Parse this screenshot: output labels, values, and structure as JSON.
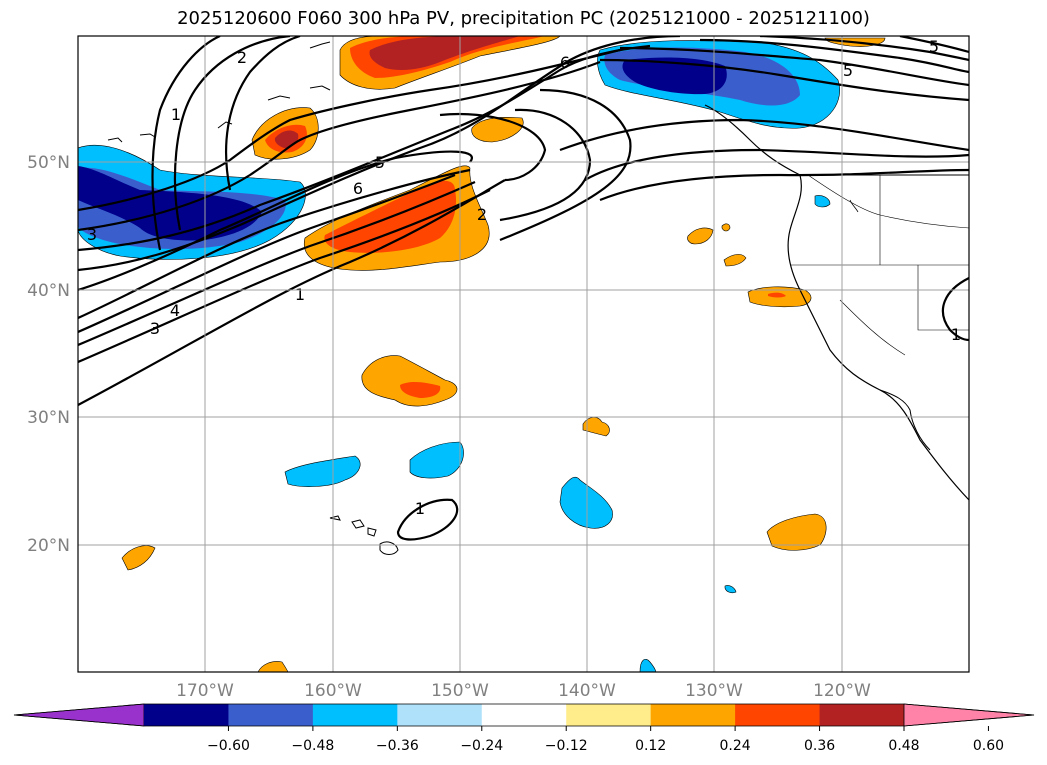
{
  "title": "2025120600 F060 300 hPa PV, precipitation PC (2025121000 - 2025121100)",
  "lat_labels": [
    "50°N",
    "40°N",
    "30°N",
    "20°N"
  ],
  "lon_labels": [
    "170°W",
    "160°W",
    "150°W",
    "140°W",
    "130°W",
    "120°W"
  ],
  "contour_labels": [
    "1",
    "2",
    "2",
    "3",
    "3",
    "4",
    "5",
    "5",
    "6",
    "6",
    "1",
    "1",
    "1",
    "5"
  ],
  "colorbar": {
    "ticks": [
      "−0.60",
      "−0.48",
      "−0.36",
      "−0.24",
      "−0.12",
      "0.12",
      "0.24",
      "0.36",
      "0.48",
      "0.60"
    ],
    "colors": [
      "#9932cc",
      "#00008b",
      "#3a5fcd",
      "#00bfff",
      "#afe1fa",
      "#ffffff",
      "#ffec8b",
      "#ffa500",
      "#ff4500",
      "#b22222",
      "#ff83a8"
    ]
  }
}
